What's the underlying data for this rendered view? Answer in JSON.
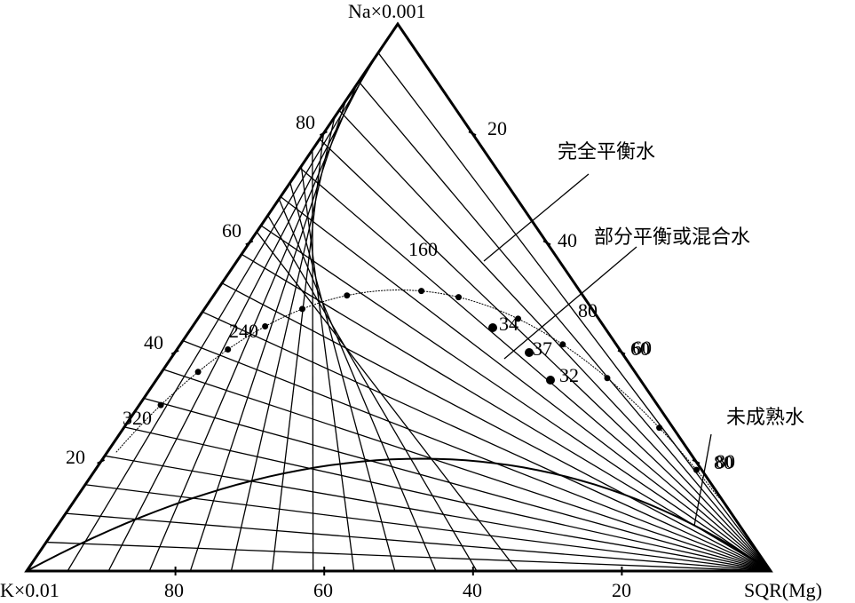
{
  "vertices": {
    "top": "Na×0.001",
    "left": "K×0.01",
    "right": "SQR(Mg)"
  },
  "scale_left": [
    "80",
    "60",
    "40",
    "20"
  ],
  "scale_right": [
    "20",
    "40",
    "60",
    "80"
  ],
  "scale_bottom": [
    "80",
    "60",
    "40",
    "20"
  ],
  "isotherm_labels": [
    "160",
    "240",
    "320"
  ],
  "samples": [
    "34",
    "37",
    "32"
  ],
  "region_labels": {
    "full_equilibrium": "完全平衡水",
    "partial_equilibrium": "部分平衡或混合水",
    "immature": "未成熟水"
  },
  "curve_labels": [
    "80",
    "60",
    "80"
  ]
}
